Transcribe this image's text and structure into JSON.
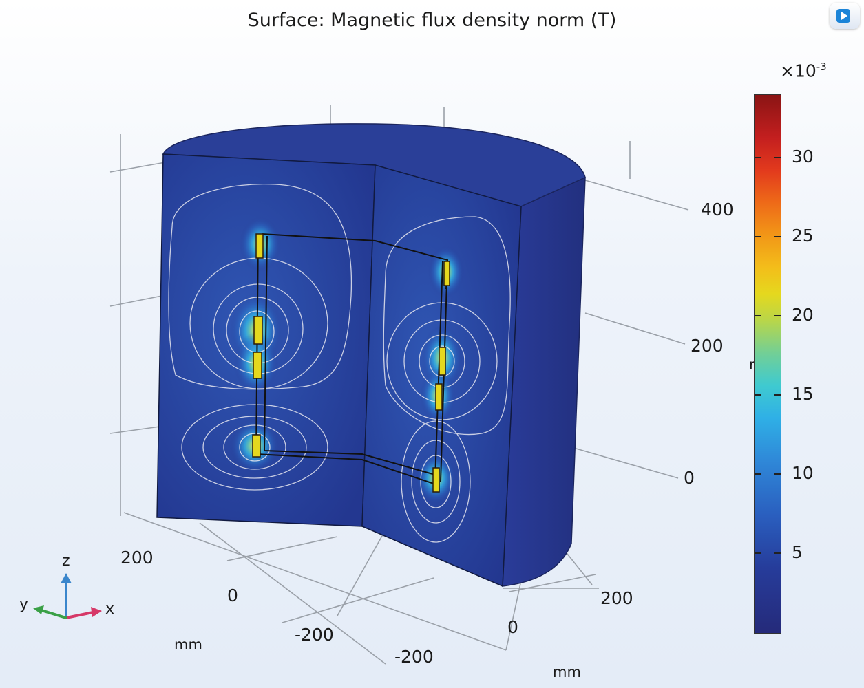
{
  "plot": {
    "title": "Surface: Magnetic flux density norm (T)",
    "quantity": "Magnetic flux density norm",
    "unit": "T"
  },
  "colorbar": {
    "multiplier_base": "×10",
    "multiplier_exp": "-3",
    "ticks": [
      "30",
      "25",
      "20",
      "15",
      "10",
      "5"
    ],
    "tick_values": [
      30,
      25,
      20,
      15,
      10,
      5
    ],
    "range": [
      0,
      34
    ],
    "colors": [
      "#252a7a",
      "#2a5fbf",
      "#2fb0e6",
      "#72cf96",
      "#e5d81e",
      "#f29617",
      "#e23a1d",
      "#8a1414"
    ]
  },
  "axes": {
    "z_ticks": [
      "400",
      "200",
      "0"
    ],
    "left_axis_ticks": [
      "200",
      "0",
      "-200"
    ],
    "right_axis_ticks": [
      "200",
      "0",
      "-200"
    ],
    "left_unit": "mm",
    "right_unit": "mm",
    "z_unit_partial": "m"
  },
  "triad": {
    "z": "z",
    "y": "y",
    "x": "x"
  },
  "colors": {
    "domain_face": "#243a93",
    "domain_top": "#2a3f98",
    "domain_curved": "#26348a",
    "field_glow": "#2fb0e6",
    "conductor": "#e5d81e",
    "contour": "#e8e8f0",
    "z_axis": "#3a86cc",
    "y_axis": "#3aa047",
    "x_axis": "#d63868"
  }
}
